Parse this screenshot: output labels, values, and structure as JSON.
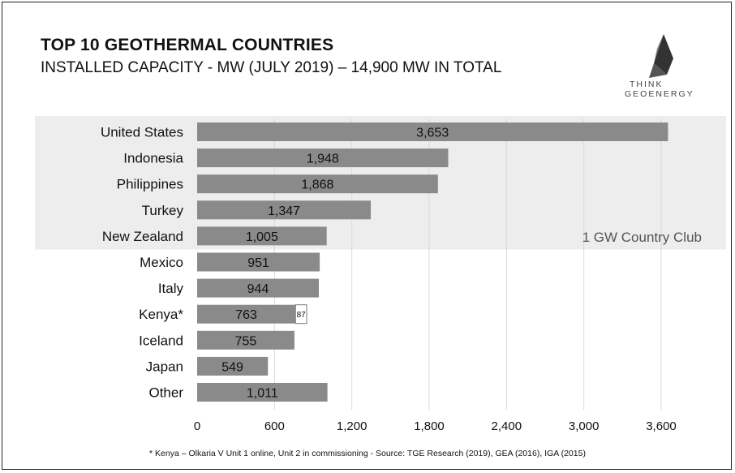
{
  "title": "TOP 10 GEOTHERMAL COUNTRIES",
  "subtitle": "INSTALLED CAPACITY - MW (JULY 2019) – 14,900 MW IN TOTAL",
  "logo": {
    "line1": "THINK",
    "line2": "GEOENERGY"
  },
  "footnote": "* Kenya – Olkaria V Unit 1 online, Unit 2 in commissioning -  Source: TGE Research (2019), GEA (2016), IGA (2015)",
  "colors": {
    "bar": "#8a8a8a",
    "highlight_band": "#ededed",
    "grid": "#d9d9d9",
    "extra_bar_border": "#777777"
  },
  "chart_data": {
    "type": "bar",
    "orientation": "horizontal",
    "categories": [
      "United States",
      "Indonesia",
      "Philippines",
      "Turkey",
      "New Zealand",
      "Mexico",
      "Italy",
      "Kenya*",
      "Iceland",
      "Japan",
      "Other"
    ],
    "values": [
      3653,
      1948,
      1868,
      1347,
      1005,
      951,
      944,
      763,
      755,
      549,
      1011
    ],
    "value_labels": [
      "3,653",
      "1,948",
      "1,868",
      "1,347",
      "1,005",
      "951",
      "944",
      "763",
      "755",
      "549",
      "1,011"
    ],
    "stacked_extra": {
      "category": "Kenya*",
      "value": 87,
      "label": "87",
      "style": "white"
    },
    "highlight": {
      "categories": [
        "United States",
        "Indonesia",
        "Philippines",
        "Turkey",
        "New Zealand"
      ],
      "label": "1 GW Country Club"
    },
    "xlim": [
      0,
      3600
    ],
    "xticks": [
      0,
      600,
      1200,
      1800,
      2400,
      3000,
      3600
    ],
    "xtick_labels": [
      "0",
      "600",
      "1,200",
      "1,800",
      "2,400",
      "3,000",
      "3,600"
    ],
    "grid": true
  }
}
